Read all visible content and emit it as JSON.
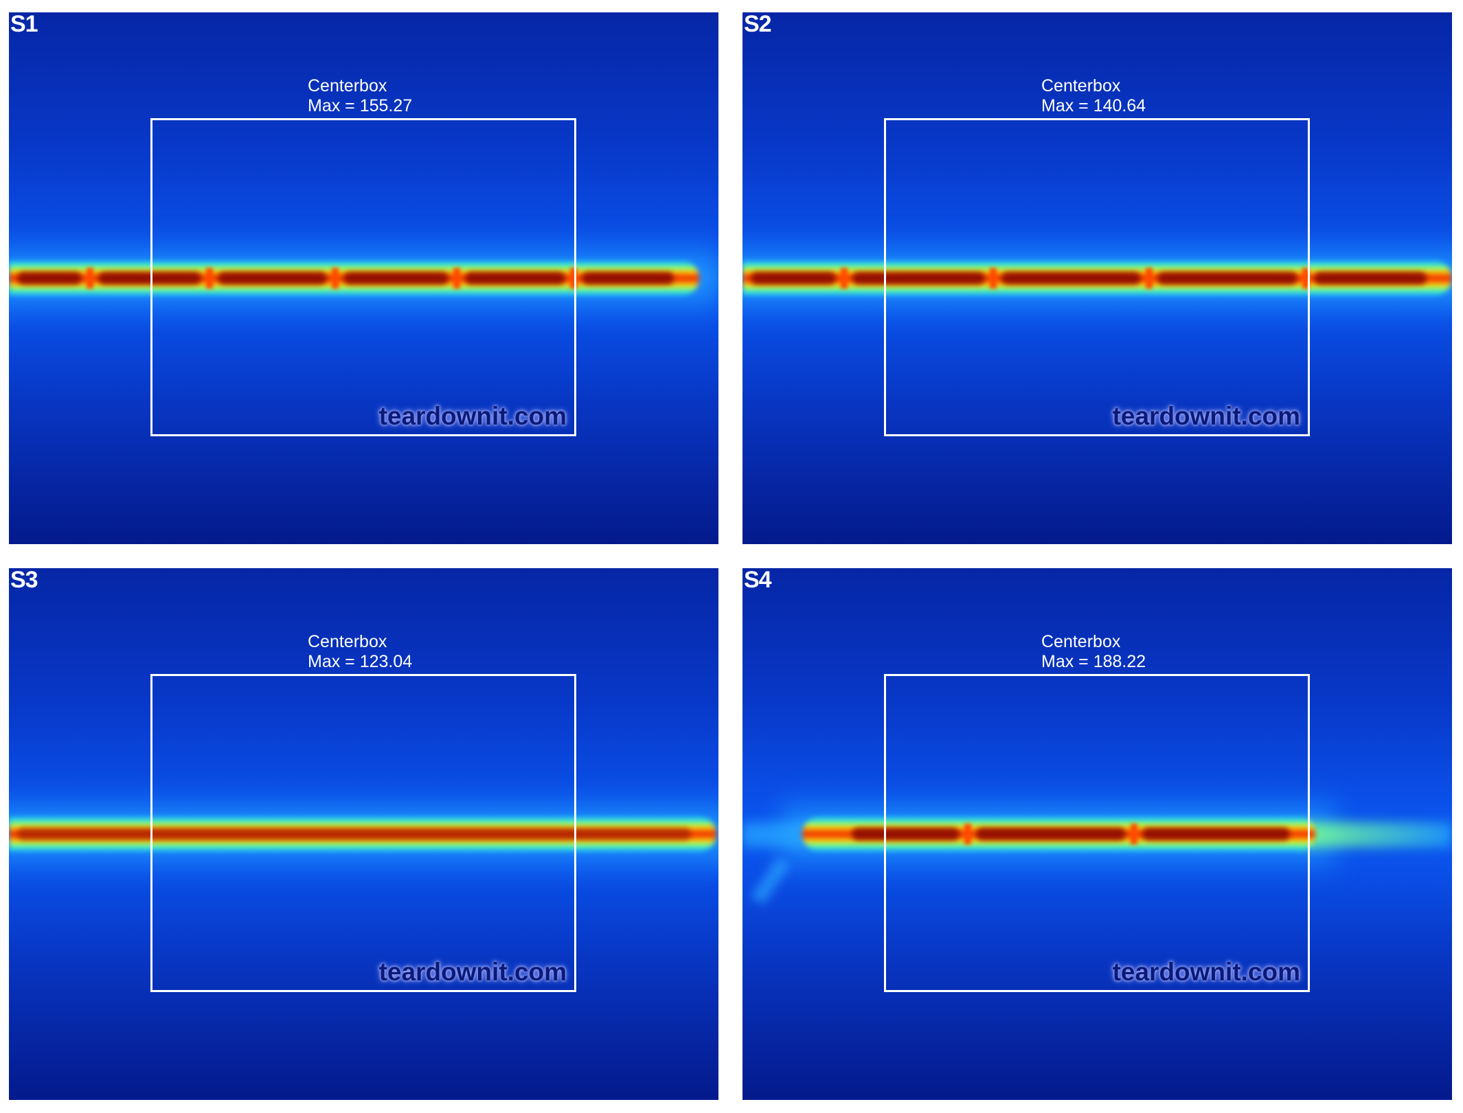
{
  "panels": [
    {
      "label": "S1",
      "box_title": "Centerbox",
      "max_text": "Max = 155.27",
      "max_value": 155.27,
      "watermark": "teardownit.com"
    },
    {
      "label": "S2",
      "box_title": "Centerbox",
      "max_text": "Max = 140.64",
      "max_value": 140.64,
      "watermark": "teardownit.com"
    },
    {
      "label": "S3",
      "box_title": "Centerbox",
      "max_text": "Max = 123.04",
      "max_value": 123.04,
      "watermark": "teardownit.com"
    },
    {
      "label": "S4",
      "box_title": "Centerbox",
      "max_text": "Max = 188.22",
      "max_value": 188.22,
      "watermark": "teardownit.com"
    }
  ]
}
